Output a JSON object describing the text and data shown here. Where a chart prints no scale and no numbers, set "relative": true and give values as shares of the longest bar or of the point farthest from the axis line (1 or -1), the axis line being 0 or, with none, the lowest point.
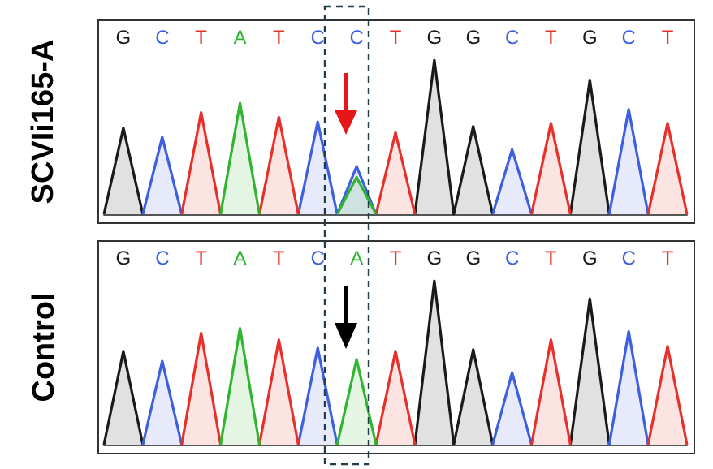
{
  "chart_data": [
    {
      "type": "area",
      "ylabel": "SCVIi165-A",
      "relative": true,
      "categories": [
        null,
        "G",
        null,
        "C",
        null,
        "T",
        null,
        "A",
        null,
        "T",
        null,
        "C",
        null,
        "C",
        null,
        "T",
        null,
        "G",
        null,
        "G",
        null,
        "C",
        null,
        "T",
        null,
        "G",
        null,
        "C",
        null,
        "T",
        null
      ],
      "series": [
        {
          "color": "#1a1a1a",
          "values": [
            0,
            0.56,
            0,
            null,
            null,
            null,
            null,
            null,
            null,
            null,
            null,
            null,
            null,
            null,
            null,
            null,
            0,
            1,
            0,
            0.57,
            0,
            null,
            null,
            null,
            0,
            0.87,
            0,
            null,
            null,
            null,
            null
          ]
        },
        {
          "color": "#3d5fe0",
          "values": [
            null,
            null,
            0,
            0.5,
            0,
            null,
            null,
            null,
            null,
            null,
            0,
            0.6,
            0,
            0.31,
            0,
            null,
            null,
            null,
            null,
            null,
            0,
            0.42,
            0,
            null,
            null,
            null,
            0,
            0.68,
            0,
            null,
            null
          ]
        },
        {
          "color": "#e8302a",
          "values": [
            null,
            null,
            null,
            null,
            0,
            0.66,
            0,
            null,
            0,
            0.63,
            0,
            null,
            null,
            null,
            0,
            0.53,
            0,
            null,
            null,
            null,
            null,
            null,
            0,
            0.59,
            0,
            null,
            null,
            null,
            0,
            0.59,
            0
          ]
        },
        {
          "color": "#2fb52f",
          "values": [
            null,
            null,
            null,
            null,
            null,
            null,
            0,
            0.72,
            0,
            null,
            null,
            null,
            0,
            0.24,
            0,
            null,
            null,
            null,
            null,
            null,
            null,
            null,
            null,
            null,
            null,
            null,
            null,
            null,
            null,
            null,
            null
          ]
        }
      ]
    },
    {
      "type": "area",
      "ylabel": "Control",
      "relative": true,
      "categories": [
        null,
        "G",
        null,
        "C",
        null,
        "T",
        null,
        "A",
        null,
        "T",
        null,
        "C",
        null,
        "A",
        null,
        "T",
        null,
        "G",
        null,
        "G",
        null,
        "C",
        null,
        "T",
        null,
        "G",
        null,
        "C",
        null,
        "T",
        null
      ],
      "series": [
        {
          "color": "#1a1a1a",
          "values": [
            0,
            0.57,
            0,
            null,
            null,
            null,
            null,
            null,
            null,
            null,
            null,
            null,
            null,
            null,
            null,
            null,
            0,
            1,
            0,
            0.58,
            0,
            null,
            null,
            null,
            0,
            0.89,
            0,
            null,
            null,
            null,
            null
          ]
        },
        {
          "color": "#3d5fe0",
          "values": [
            null,
            null,
            0,
            0.51,
            0,
            null,
            null,
            null,
            null,
            null,
            0,
            0.59,
            0,
            null,
            null,
            null,
            null,
            null,
            null,
            null,
            0,
            0.44,
            0,
            null,
            null,
            null,
            0,
            0.69,
            0,
            null,
            null
          ]
        },
        {
          "color": "#e8302a",
          "values": [
            null,
            null,
            null,
            null,
            0,
            0.68,
            0,
            null,
            0,
            0.64,
            0,
            null,
            null,
            null,
            0,
            0.57,
            0,
            null,
            null,
            null,
            null,
            null,
            0,
            0.64,
            0,
            null,
            null,
            null,
            0,
            0.6,
            0
          ]
        },
        {
          "color": "#2fb52f",
          "values": [
            null,
            null,
            null,
            null,
            null,
            null,
            0,
            0.71,
            0,
            null,
            null,
            null,
            0,
            0.52,
            0,
            null,
            null,
            null,
            null,
            null,
            null,
            null,
            null,
            null,
            null,
            null,
            null,
            null,
            null,
            null,
            null
          ]
        }
      ]
    }
  ]
}
